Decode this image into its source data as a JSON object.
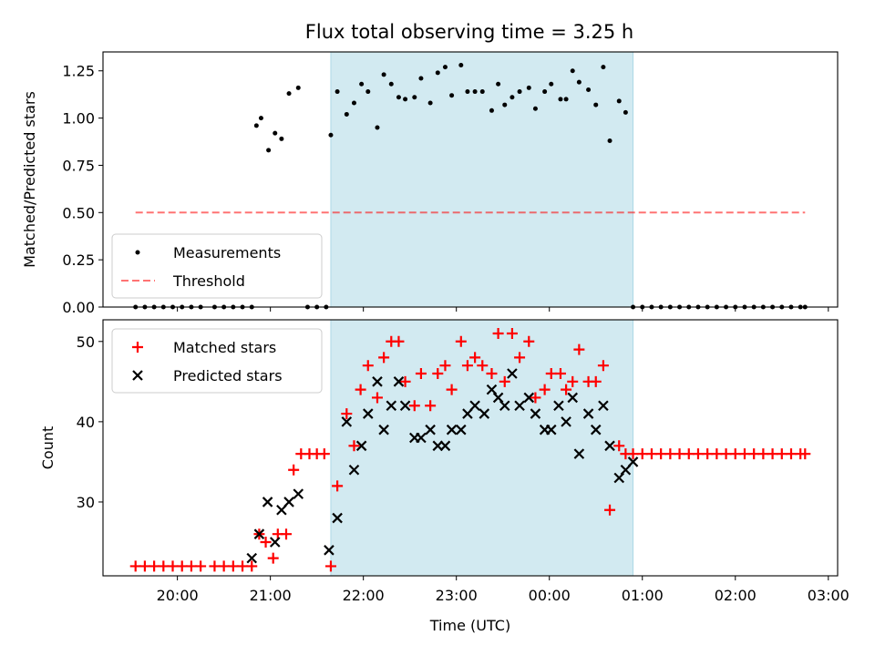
{
  "title": "Flux total observing time = 3.25 h",
  "colors": {
    "highlight": "#add8e6",
    "threshold": "#ff0000",
    "measurement": "#000000",
    "matched": "#ff0000",
    "predicted": "#000000"
  },
  "chart_data": [
    {
      "type": "scatter",
      "ylabel": "Matched/Predicted stars",
      "ylim": [
        0.0,
        1.35
      ],
      "xlim": [
        19.2,
        27.1
      ],
      "yticks": [
        0.0,
        0.25,
        0.5,
        0.75,
        1.0,
        1.25
      ],
      "ytick_labels": [
        "0.00",
        "0.25",
        "0.50",
        "0.75",
        "1.00",
        "1.25"
      ],
      "shaded_region": [
        21.65,
        24.9
      ],
      "legend": {
        "location": "lower-left",
        "entries": [
          "Measurements",
          "Threshold"
        ]
      },
      "series": [
        {
          "name": "Measurements",
          "marker": "dot",
          "x": [
            19.55,
            19.65,
            19.75,
            19.85,
            19.95,
            20.05,
            20.15,
            20.25,
            20.4,
            20.5,
            20.6,
            20.7,
            20.8,
            20.85,
            20.9,
            20.98,
            21.05,
            21.12,
            21.2,
            21.3,
            21.4,
            21.5,
            21.6,
            21.65,
            21.72,
            21.82,
            21.9,
            21.98,
            22.05,
            22.15,
            22.22,
            22.3,
            22.38,
            22.45,
            22.55,
            22.62,
            22.72,
            22.8,
            22.88,
            22.95,
            23.05,
            23.12,
            23.2,
            23.28,
            23.38,
            23.45,
            23.52,
            23.6,
            23.68,
            23.78,
            23.85,
            23.95,
            24.02,
            24.12,
            24.18,
            24.25,
            24.32,
            24.42,
            24.5,
            24.58,
            24.65,
            24.75,
            24.82,
            24.9,
            25.0,
            25.1,
            25.2,
            25.3,
            25.4,
            25.5,
            25.6,
            25.7,
            25.8,
            25.9,
            26.0,
            26.1,
            26.2,
            26.3,
            26.4,
            26.5,
            26.6,
            26.7,
            26.75
          ],
          "y": [
            0,
            0,
            0,
            0,
            0,
            0,
            0,
            0,
            0,
            0,
            0,
            0,
            0,
            0.96,
            1.0,
            0.83,
            0.92,
            0.89,
            1.13,
            1.16,
            0,
            0,
            0,
            0.91,
            1.14,
            1.02,
            1.08,
            1.18,
            1.14,
            0.95,
            1.23,
            1.18,
            1.11,
            1.1,
            1.11,
            1.21,
            1.08,
            1.24,
            1.27,
            1.12,
            1.28,
            1.14,
            1.14,
            1.14,
            1.04,
            1.18,
            1.07,
            1.11,
            1.14,
            1.16,
            1.05,
            1.14,
            1.18,
            1.1,
            1.1,
            1.25,
            1.19,
            1.15,
            1.07,
            1.27,
            0.88,
            1.09,
            1.03,
            0,
            0,
            0,
            0,
            0,
            0,
            0,
            0,
            0,
            0,
            0,
            0,
            0,
            0,
            0,
            0,
            0,
            0,
            0,
            0
          ]
        },
        {
          "name": "Threshold",
          "type": "line",
          "style": "dashed",
          "x": [
            19.55,
            26.75
          ],
          "y": [
            0.5,
            0.5
          ]
        }
      ]
    },
    {
      "type": "scatter",
      "ylabel": "Count",
      "xlabel": "Time (UTC)",
      "ylim": [
        20.8,
        52.7
      ],
      "xlim": [
        19.2,
        27.1
      ],
      "yticks": [
        30,
        40,
        50
      ],
      "ytick_labels": [
        "30",
        "40",
        "50"
      ],
      "xticks": [
        20,
        21,
        22,
        23,
        24,
        25,
        26,
        27
      ],
      "xtick_labels": [
        "20:00",
        "21:00",
        "22:00",
        "23:00",
        "00:00",
        "01:00",
        "02:00",
        "03:00"
      ],
      "shaded_region": [
        21.65,
        24.9
      ],
      "legend": {
        "location": "upper-left",
        "entries": [
          "Matched stars",
          "Predicted stars"
        ]
      },
      "series": [
        {
          "name": "Matched stars",
          "marker": "plus",
          "x": [
            19.55,
            19.65,
            19.75,
            19.85,
            19.95,
            20.05,
            20.15,
            20.25,
            20.4,
            20.5,
            20.6,
            20.7,
            20.8,
            20.88,
            20.95,
            21.03,
            21.08,
            21.17,
            21.25,
            21.33,
            21.42,
            21.5,
            21.58,
            21.65,
            21.72,
            21.82,
            21.9,
            21.97,
            22.05,
            22.15,
            22.22,
            22.3,
            22.38,
            22.45,
            22.55,
            22.62,
            22.72,
            22.8,
            22.88,
            22.95,
            23.05,
            23.12,
            23.2,
            23.28,
            23.38,
            23.45,
            23.52,
            23.6,
            23.68,
            23.78,
            23.85,
            23.95,
            24.02,
            24.12,
            24.18,
            24.25,
            24.32,
            24.42,
            24.5,
            24.58,
            24.65,
            24.75,
            24.82,
            24.9,
            25.0,
            25.1,
            25.2,
            25.3,
            25.4,
            25.5,
            25.6,
            25.7,
            25.8,
            25.9,
            26.0,
            26.1,
            26.2,
            26.3,
            26.4,
            26.5,
            26.6,
            26.7,
            26.75
          ],
          "y": [
            22,
            22,
            22,
            22,
            22,
            22,
            22,
            22,
            22,
            22,
            22,
            22,
            22,
            26,
            25,
            23,
            26,
            26,
            34,
            36,
            36,
            36,
            36,
            22,
            32,
            41,
            37,
            44,
            47,
            43,
            48,
            50,
            50,
            45,
            42,
            46,
            42,
            46,
            47,
            44,
            50,
            47,
            48,
            47,
            46,
            51,
            45,
            51,
            48,
            50,
            43,
            44,
            46,
            46,
            44,
            45,
            49,
            45,
            45,
            47,
            29,
            37,
            36,
            36,
            36,
            36,
            36,
            36,
            36,
            36,
            36,
            36,
            36,
            36,
            36,
            36,
            36,
            36,
            36,
            36,
            36,
            36,
            36
          ]
        },
        {
          "name": "Predicted stars",
          "marker": "x",
          "x": [
            20.8,
            20.88,
            20.97,
            21.05,
            21.12,
            21.2,
            21.3,
            21.63,
            21.72,
            21.82,
            21.9,
            21.98,
            22.05,
            22.15,
            22.22,
            22.3,
            22.38,
            22.45,
            22.55,
            22.62,
            22.72,
            22.8,
            22.88,
            22.95,
            23.05,
            23.12,
            23.2,
            23.3,
            23.38,
            23.45,
            23.52,
            23.6,
            23.68,
            23.78,
            23.85,
            23.95,
            24.02,
            24.1,
            24.18,
            24.25,
            24.32,
            24.42,
            24.5,
            24.58,
            24.65,
            24.75,
            24.82,
            24.9
          ],
          "y": [
            23,
            26,
            30,
            25,
            29,
            30,
            31,
            24,
            28,
            40,
            34,
            37,
            41,
            45,
            39,
            42,
            45,
            42,
            38,
            38,
            39,
            37,
            37,
            39,
            39,
            41,
            42,
            41,
            44,
            43,
            42,
            46,
            42,
            43,
            41,
            39,
            39,
            42,
            40,
            43,
            36,
            41,
            39,
            42,
            37,
            33,
            34,
            35
          ]
        }
      ]
    }
  ]
}
